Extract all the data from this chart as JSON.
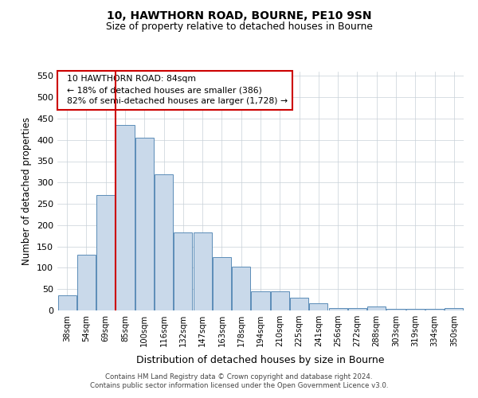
{
  "title1": "10, HAWTHORN ROAD, BOURNE, PE10 9SN",
  "title2": "Size of property relative to detached houses in Bourne",
  "xlabel": "Distribution of detached houses by size in Bourne",
  "ylabel": "Number of detached properties",
  "categories": [
    "38sqm",
    "54sqm",
    "69sqm",
    "85sqm",
    "100sqm",
    "116sqm",
    "132sqm",
    "147sqm",
    "163sqm",
    "178sqm",
    "194sqm",
    "210sqm",
    "225sqm",
    "241sqm",
    "256sqm",
    "272sqm",
    "288sqm",
    "303sqm",
    "319sqm",
    "334sqm",
    "350sqm"
  ],
  "values": [
    35,
    130,
    270,
    435,
    405,
    320,
    183,
    183,
    125,
    103,
    45,
    45,
    29,
    17,
    6,
    5,
    9,
    3,
    4,
    4,
    6
  ],
  "bar_color": "#c9d9ea",
  "bar_edge_color": "#5b8db8",
  "marker_color": "#cc0000",
  "annotation_line1": "  10 HAWTHORN ROAD: 84sqm",
  "annotation_line2": "  ← 18% of detached houses are smaller (386)",
  "annotation_line3": "  82% of semi-detached houses are larger (1,728) →",
  "annotation_box_color": "#ffffff",
  "annotation_box_edge_color": "#cc0000",
  "footer1": "Contains HM Land Registry data © Crown copyright and database right 2024.",
  "footer2": "Contains public sector information licensed under the Open Government Licence v3.0.",
  "ylim": [
    0,
    560
  ],
  "yticks": [
    0,
    50,
    100,
    150,
    200,
    250,
    300,
    350,
    400,
    450,
    500,
    550
  ],
  "bg_color": "#ffffff",
  "grid_color": "#c8d0d8"
}
